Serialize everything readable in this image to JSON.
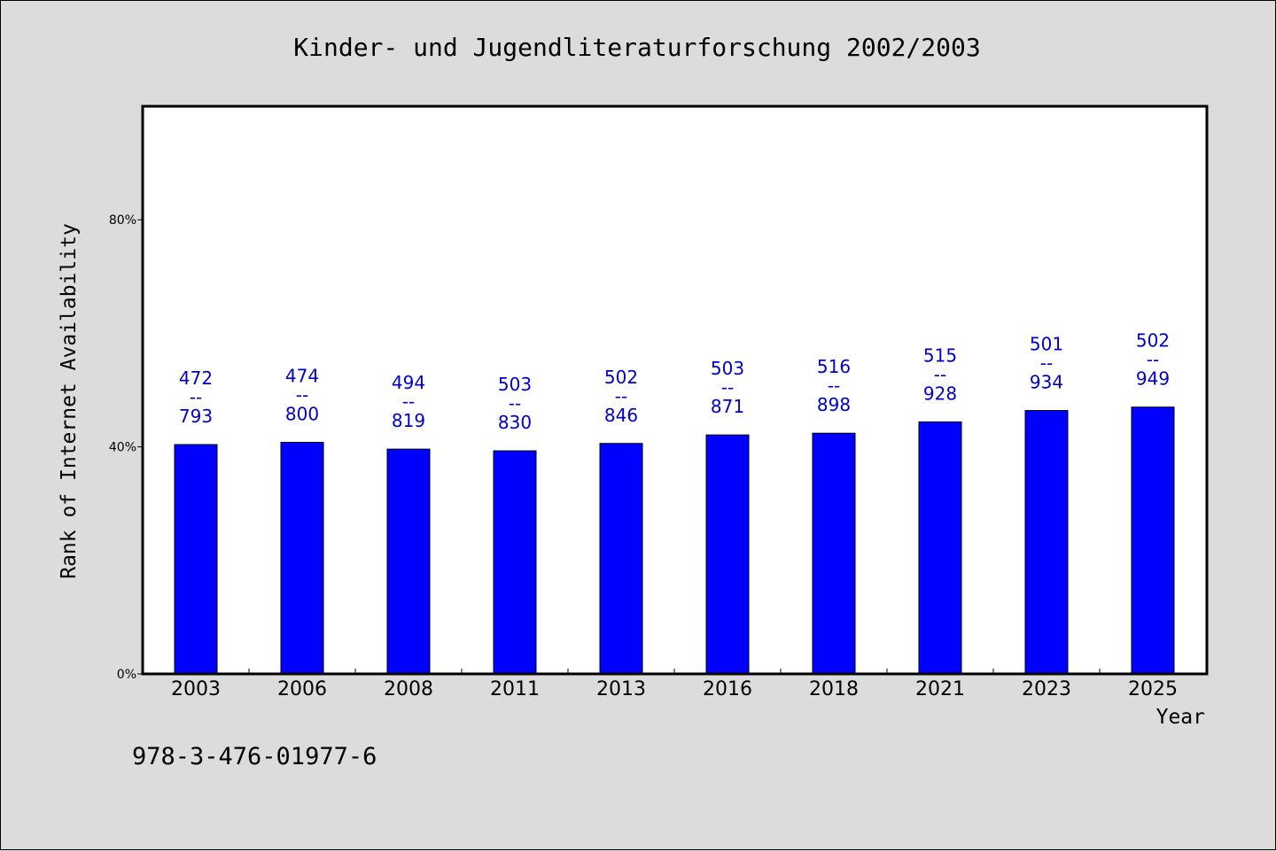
{
  "chart_data": {
    "type": "bar",
    "title": "Kinder- und Jugendliteraturforschung 2002/2003",
    "xlabel": "Year",
    "ylabel": "Rank of Internet Availability",
    "categories": [
      "2003",
      "2006",
      "2008",
      "2011",
      "2013",
      "2016",
      "2018",
      "2021",
      "2023",
      "2025"
    ],
    "values": [
      40.4,
      40.8,
      39.6,
      39.3,
      40.6,
      42.1,
      42.4,
      44.4,
      46.4,
      47.0
    ],
    "bar_labels": [
      [
        "472",
        "--",
        "793"
      ],
      [
        "474",
        "--",
        "800"
      ],
      [
        "494",
        "--",
        "819"
      ],
      [
        "503",
        "--",
        "830"
      ],
      [
        "502",
        "--",
        "846"
      ],
      [
        "503",
        "--",
        "871"
      ],
      [
        "516",
        "--",
        "898"
      ],
      [
        "515",
        "--",
        "928"
      ],
      [
        "501",
        "--",
        "934"
      ],
      [
        "502",
        "--",
        "949"
      ]
    ],
    "ylim": [
      0,
      100
    ],
    "yticks": [
      0,
      40,
      80
    ],
    "ytick_labels": [
      "0%",
      "40%",
      "80%"
    ],
    "grid": false,
    "bar_color": "#0000ff",
    "label_color": "#0000cc",
    "plot_background": "#ffffff",
    "page_background": "#dcdcdc"
  },
  "footnote": "978-3-476-01977-6"
}
